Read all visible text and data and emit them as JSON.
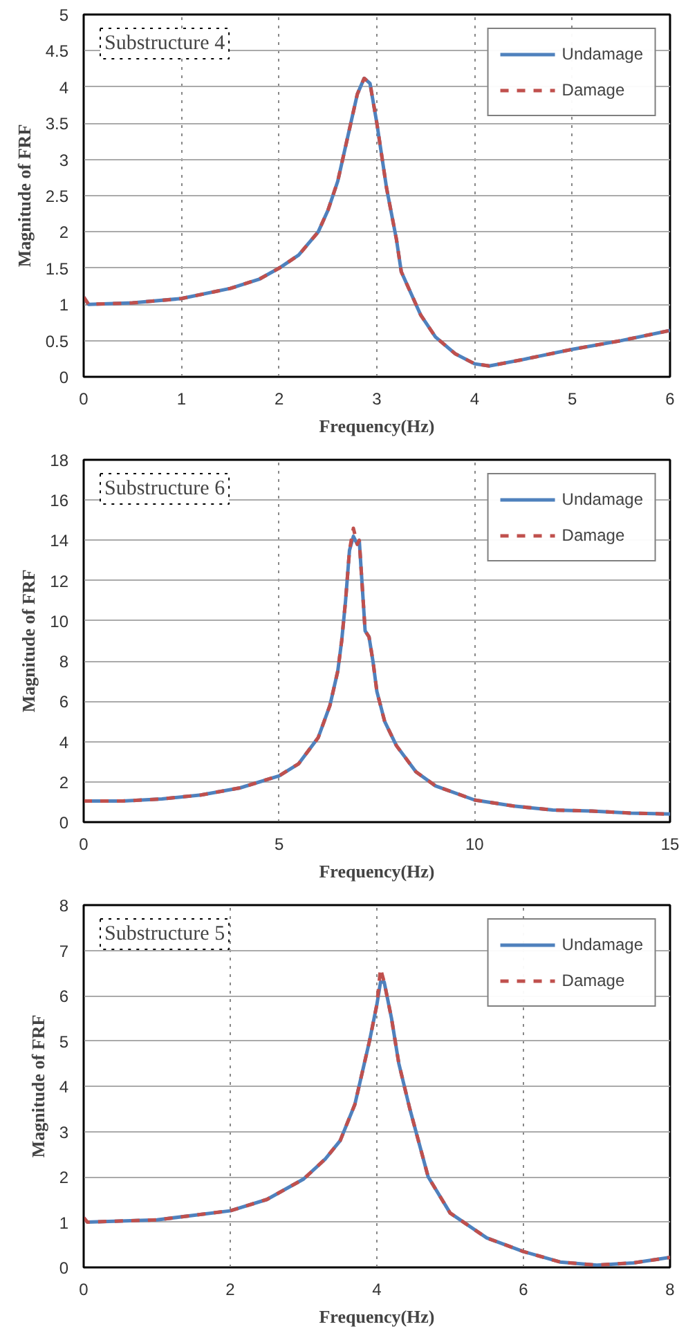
{
  "chart_data": [
    {
      "type": "line",
      "xlabel": "Frequency(Hz)",
      "ylabel": "Magnitude of FRF",
      "annotations": [
        "Substructure 4"
      ],
      "xlim": [
        0,
        6
      ],
      "ylim": [
        0,
        5
      ],
      "xticks": [
        0,
        1,
        2,
        3,
        4,
        5,
        6
      ],
      "yticks": [
        0,
        0.5,
        1,
        1.5,
        2,
        2.5,
        3,
        3.5,
        4,
        4.5,
        5
      ],
      "grid": true,
      "legend": "top right",
      "x": [
        0,
        0.05,
        0.5,
        1,
        1.5,
        1.8,
        2,
        2.2,
        2.4,
        2.5,
        2.6,
        2.7,
        2.8,
        2.87,
        2.93,
        3.0,
        3.1,
        3.2,
        3.25,
        3.35,
        3.45,
        3.6,
        3.8,
        4.0,
        4.15,
        4.5,
        5,
        5.5,
        6
      ],
      "series": [
        {
          "name": "Undamage",
          "color": "#4f81bd",
          "line_style": "solid",
          "values": [
            1.1,
            1.0,
            1.02,
            1.08,
            1.22,
            1.35,
            1.5,
            1.68,
            2.0,
            2.3,
            2.7,
            3.3,
            3.9,
            4.12,
            4.05,
            3.5,
            2.6,
            1.9,
            1.45,
            1.15,
            0.85,
            0.55,
            0.32,
            0.18,
            0.15,
            0.24,
            0.38,
            0.5,
            0.64
          ]
        },
        {
          "name": "Damage",
          "color": "#c0504d",
          "line_style": "dashed",
          "values": [
            1.1,
            1.0,
            1.02,
            1.08,
            1.22,
            1.35,
            1.5,
            1.68,
            2.0,
            2.3,
            2.7,
            3.3,
            3.9,
            4.12,
            4.05,
            3.5,
            2.6,
            1.9,
            1.45,
            1.15,
            0.85,
            0.55,
            0.32,
            0.18,
            0.15,
            0.24,
            0.38,
            0.5,
            0.64
          ]
        }
      ]
    },
    {
      "type": "line",
      "xlabel": "Frequency(Hz)",
      "ylabel": "Magnitude of FRF",
      "annotations": [
        "Substructure 6"
      ],
      "xlim": [
        0,
        15
      ],
      "ylim": [
        0,
        18
      ],
      "xticks": [
        0,
        5,
        10,
        15
      ],
      "yticks": [
        0,
        2,
        4,
        6,
        8,
        10,
        12,
        14,
        16,
        18
      ],
      "grid": true,
      "legend": "top right",
      "x": [
        0,
        1,
        2,
        3,
        4,
        5,
        5.5,
        6,
        6.3,
        6.5,
        6.6,
        6.7,
        6.8,
        6.9,
        7.0,
        7.05,
        7.15,
        7.2,
        7.3,
        7.4,
        7.5,
        7.7,
        8,
        8.5,
        9,
        10,
        11,
        12,
        13,
        14,
        15
      ],
      "series": [
        {
          "name": "Undamage",
          "color": "#4f81bd",
          "line_style": "solid",
          "values": [
            1.05,
            1.05,
            1.15,
            1.35,
            1.7,
            2.3,
            2.9,
            4.2,
            5.8,
            7.5,
            9.0,
            11,
            13.5,
            14.2,
            13.8,
            14,
            11,
            9.5,
            9.2,
            8,
            6.5,
            5,
            3.8,
            2.5,
            1.8,
            1.1,
            0.8,
            0.6,
            0.55,
            0.45,
            0.4
          ]
        },
        {
          "name": "Damage",
          "color": "#c0504d",
          "line_style": "dashed",
          "values": [
            1.05,
            1.05,
            1.15,
            1.35,
            1.7,
            2.3,
            2.9,
            4.2,
            5.8,
            7.5,
            9.0,
            11,
            13.5,
            14.6,
            13.8,
            14,
            11,
            9.5,
            9.2,
            8,
            6.5,
            5,
            3.8,
            2.5,
            1.8,
            1.1,
            0.8,
            0.6,
            0.55,
            0.45,
            0.4
          ]
        }
      ]
    },
    {
      "type": "line",
      "xlabel": "Frequency(Hz)",
      "ylabel": "Magnitude of FRF",
      "annotations": [
        "Substructure 5"
      ],
      "xlim": [
        0,
        8
      ],
      "ylim": [
        0,
        8
      ],
      "xticks": [
        0,
        2,
        4,
        6,
        8
      ],
      "yticks": [
        0,
        1,
        2,
        3,
        4,
        5,
        6,
        7,
        8
      ],
      "grid": true,
      "legend": "top right",
      "x": [
        0,
        0.05,
        1,
        2,
        2.5,
        3,
        3.3,
        3.5,
        3.7,
        3.8,
        3.9,
        4.0,
        4.05,
        4.1,
        4.2,
        4.3,
        4.45,
        4.55,
        4.7,
        5,
        5.5,
        6,
        6.5,
        7,
        7.5,
        8
      ],
      "series": [
        {
          "name": "Undamage",
          "color": "#4f81bd",
          "line_style": "solid",
          "values": [
            1.1,
            1.0,
            1.05,
            1.25,
            1.5,
            1.95,
            2.4,
            2.8,
            3.6,
            4.3,
            5.0,
            5.8,
            6.3,
            6.3,
            5.5,
            4.5,
            3.5,
            2.9,
            2.0,
            1.2,
            0.65,
            0.35,
            0.12,
            0.05,
            0.1,
            0.22
          ]
        },
        {
          "name": "Damage",
          "color": "#c0504d",
          "line_style": "dashed",
          "values": [
            1.1,
            1.0,
            1.05,
            1.25,
            1.5,
            1.95,
            2.4,
            2.8,
            3.6,
            4.3,
            5.0,
            5.8,
            6.6,
            6.3,
            5.5,
            4.5,
            3.5,
            2.9,
            2.0,
            1.2,
            0.65,
            0.35,
            0.12,
            0.05,
            0.1,
            0.22
          ]
        }
      ]
    }
  ]
}
